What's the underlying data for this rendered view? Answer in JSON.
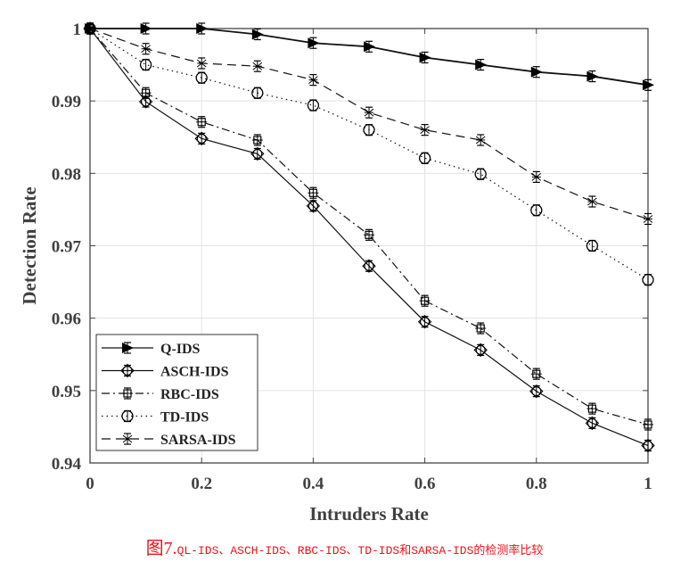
{
  "chart_data": {
    "type": "line",
    "title": "",
    "xlabel": "Intruders Rate",
    "ylabel": "Detection Rate",
    "xlim": [
      0,
      1
    ],
    "ylim": [
      0.94,
      1
    ],
    "grid": true,
    "legend_position": "bottom-left",
    "x_ticks": [
      "0",
      "0.2",
      "0.4",
      "0.6",
      "0.8",
      "1"
    ],
    "y_ticks": [
      "0.94",
      "0.95",
      "0.96",
      "0.97",
      "0.98",
      "0.99",
      "1"
    ],
    "x": [
      0,
      0.1,
      0.2,
      0.3,
      0.4,
      0.5,
      0.6,
      0.7,
      0.8,
      0.9,
      1.0
    ],
    "series": [
      {
        "name": "Q-IDS",
        "line": "solid",
        "marker": "triangle-right-filled",
        "values": [
          1.0,
          1.0,
          1.0,
          0.9992,
          0.998,
          0.9975,
          0.996,
          0.995,
          0.994,
          0.9934,
          0.9922
        ]
      },
      {
        "name": "ASCH-IDS",
        "line": "solid",
        "marker": "diamond-circle",
        "values": [
          1.0,
          0.9899,
          0.9848,
          0.9827,
          0.9755,
          0.9672,
          0.9595,
          0.9556,
          0.9499,
          0.9455,
          0.9424
        ]
      },
      {
        "name": "RBC-IDS",
        "line": "dashdot",
        "marker": "square-star",
        "values": [
          1.0,
          0.9911,
          0.9871,
          0.9846,
          0.9773,
          0.9715,
          0.9624,
          0.9586,
          0.9523,
          0.9475,
          0.9453
        ]
      },
      {
        "name": "TD-IDS",
        "line": "dotted",
        "marker": "circle",
        "values": [
          1.0,
          0.995,
          0.9932,
          0.9911,
          0.9894,
          0.986,
          0.9821,
          0.9799,
          0.9749,
          0.97,
          0.9653
        ]
      },
      {
        "name": "SARSA-IDS",
        "line": "dashed",
        "marker": "asterisk",
        "values": [
          1.0,
          0.9972,
          0.9952,
          0.9948,
          0.9929,
          0.9884,
          0.986,
          0.9846,
          0.9795,
          0.9761,
          0.9737
        ]
      }
    ]
  },
  "caption": {
    "figure_label": "图7.",
    "text": "QL-IDS、ASCH-IDS、RBC-IDS、TD-IDS和SARSA-IDS的检测率比较",
    "color": "#e8141c"
  }
}
